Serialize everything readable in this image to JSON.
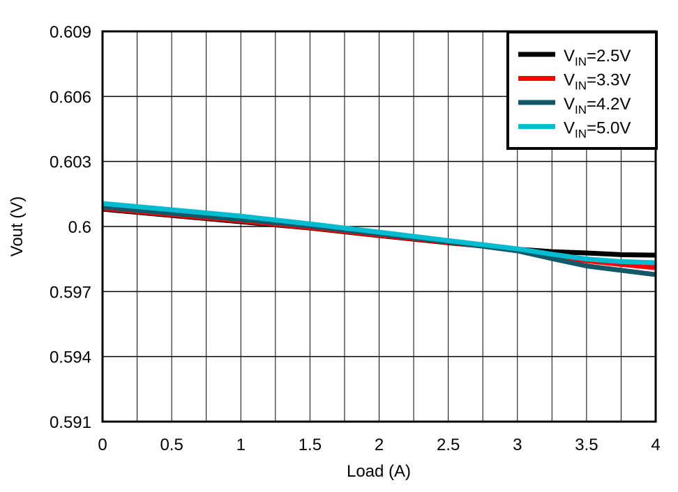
{
  "chart_data": {
    "type": "line",
    "title": "",
    "xlabel": "Load (A)",
    "ylabel": "Vout (V)",
    "xlim": [
      0,
      4
    ],
    "ylim": [
      0.591,
      0.609
    ],
    "xticks": [
      "0",
      "0.5",
      "1",
      "1.5",
      "2",
      "2.5",
      "3",
      "3.5",
      "4"
    ],
    "yticks": [
      "0.591",
      "0.594",
      "0.597",
      "0.6",
      "0.603",
      "0.606",
      "0.609"
    ],
    "grid": true,
    "legend_position": "top-right",
    "x": [
      0,
      0.5,
      1,
      1.5,
      2,
      2.5,
      3,
      3.25,
      3.5,
      3.75,
      4
    ],
    "series": [
      {
        "name": "VIN=2.5V",
        "name_parts": [
          "V",
          "IN",
          "=2.5V"
        ],
        "color": "#000000",
        "values": [
          0.6008,
          0.60051,
          0.60022,
          0.59993,
          0.59958,
          0.59925,
          0.59895,
          0.59884,
          0.59878,
          0.5987,
          0.59868
        ]
      },
      {
        "name": "VIN=3.3V",
        "name_parts": [
          "V",
          "IN",
          "=3.3V"
        ],
        "color": "#FF0000",
        "values": [
          0.60084,
          0.60054,
          0.60026,
          0.59995,
          0.5996,
          0.59927,
          0.59893,
          0.59867,
          0.59842,
          0.59825,
          0.5981
        ]
      },
      {
        "name": "VIN=4.2V",
        "name_parts": [
          "V",
          "IN",
          "=4.2V"
        ],
        "color": "#135868",
        "values": [
          0.6009,
          0.60061,
          0.60033,
          0.60002,
          0.59966,
          0.5993,
          0.59888,
          0.59852,
          0.59818,
          0.59798,
          0.59778
        ]
      },
      {
        "name": "VIN=5.0V",
        "name_parts": [
          "V",
          "IN",
          "=5.0V"
        ],
        "color": "#00BCD0",
        "values": [
          0.60106,
          0.60077,
          0.60048,
          0.60012,
          0.59974,
          0.59935,
          0.59897,
          0.59872,
          0.5985,
          0.59838,
          0.59833
        ]
      }
    ]
  }
}
